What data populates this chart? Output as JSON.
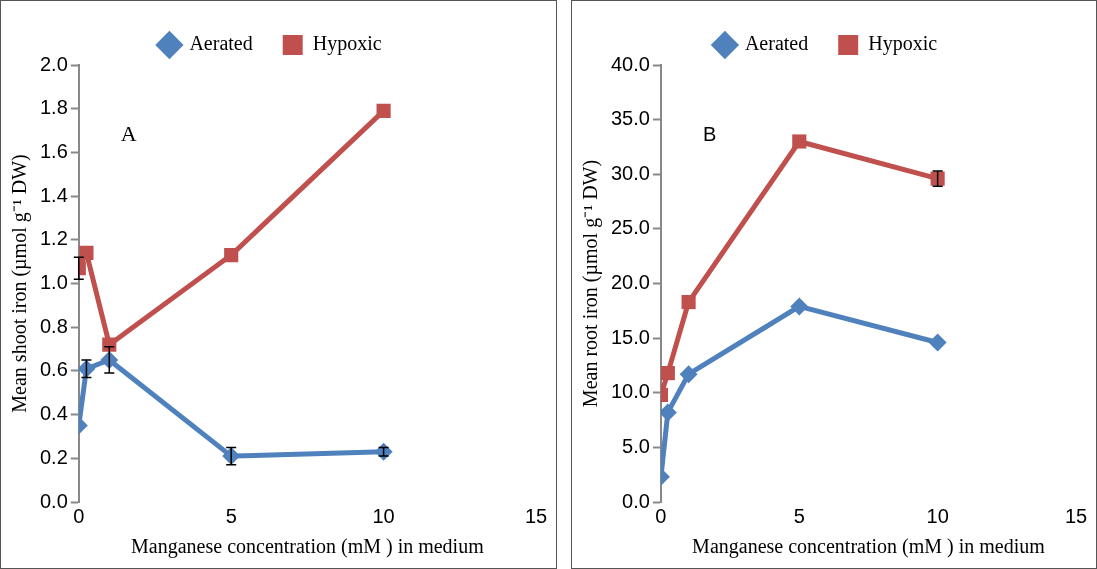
{
  "chart_data": [
    {
      "type": "line",
      "xlabel": "Manganese concentration (mM ) in medium",
      "ylabel": "Mean shoot iron (µmol g⁻¹ DW)",
      "annotations": [
        "A"
      ],
      "x": [
        0,
        0.25,
        1,
        5,
        10
      ],
      "xlim": [
        0,
        15
      ],
      "xticks": [
        0,
        5,
        10,
        15
      ],
      "ylim": [
        0,
        2
      ],
      "yticks": [
        {
          "value": 0,
          "label": "0.0"
        },
        {
          "value": 0.2,
          "label": "0.2"
        },
        {
          "value": 0.4,
          "label": "0.4"
        },
        {
          "value": 0.6,
          "label": "0.6"
        },
        {
          "value": 0.8,
          "label": "0.8"
        },
        {
          "value": 1,
          "label": "1.0"
        },
        {
          "value": 1.2,
          "label": "1.2"
        },
        {
          "value": 1.4,
          "label": "1.4"
        },
        {
          "value": 1.6,
          "label": "1.6"
        },
        {
          "value": 1.8,
          "label": "1.8"
        },
        {
          "value": 2,
          "label": "2.0"
        }
      ],
      "grid": false,
      "legend": "top",
      "line_style": "solid",
      "series": [
        {
          "name": "Aerated",
          "color": "#4f81bd",
          "marker": "diamond",
          "values": [
            0.35,
            0.61,
            0.65,
            0.21,
            0.23
          ],
          "errors": [
            null,
            0.04,
            0.06,
            0.04,
            0.02
          ]
        },
        {
          "name": "Hypoxic",
          "color": "#c0504d",
          "marker": "square",
          "values": [
            1.07,
            1.14,
            0.72,
            1.13,
            1.79
          ],
          "errors": [
            0.05,
            null,
            null,
            null,
            null
          ]
        }
      ]
    },
    {
      "type": "line",
      "xlabel": "Manganese concentration (mM ) in medium",
      "ylabel": "Mean root iron (µmol g⁻¹ DW)",
      "annotations": [
        "B"
      ],
      "x": [
        0,
        0.25,
        1,
        5,
        10
      ],
      "xlim": [
        0,
        15
      ],
      "xticks": [
        0,
        5,
        10,
        15
      ],
      "ylim": [
        0,
        40
      ],
      "yticks": [
        {
          "value": 0,
          "label": "0.0"
        },
        {
          "value": 5,
          "label": "5.0"
        },
        {
          "value": 10,
          "label": "10.0"
        },
        {
          "value": 15,
          "label": "15.0"
        },
        {
          "value": 20,
          "label": "20.0"
        },
        {
          "value": 25,
          "label": "25.0"
        },
        {
          "value": 30,
          "label": "30.0"
        },
        {
          "value": 35,
          "label": "35.0"
        },
        {
          "value": 40,
          "label": "40.0"
        }
      ],
      "grid": false,
      "legend": "top",
      "line_style": "solid",
      "series": [
        {
          "name": "Aerated",
          "color": "#4f81bd",
          "marker": "diamond",
          "values": [
            2.3,
            8.2,
            11.7,
            17.9,
            14.6
          ]
        },
        {
          "name": "Hypoxic",
          "color": "#c0504d",
          "marker": "square",
          "values": [
            9.8,
            11.8,
            18.3,
            33.0,
            29.6
          ],
          "errors": [
            null,
            null,
            null,
            null,
            0.7
          ]
        }
      ]
    }
  ]
}
